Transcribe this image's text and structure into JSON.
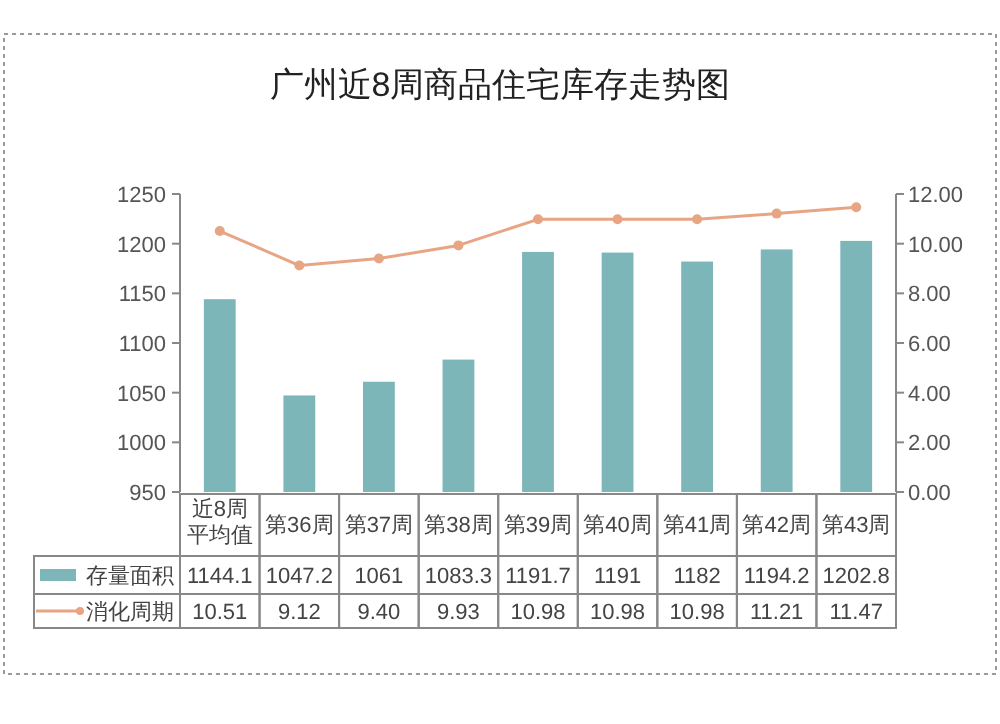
{
  "chart_data": {
    "type": "bar",
    "title": "广州近8周商品住宅库存走势图",
    "categories": [
      "近8周平均值",
      "第36周",
      "第37周",
      "第38周",
      "第39周",
      "第40周",
      "第41周",
      "第42周",
      "第43周"
    ],
    "series": [
      {
        "name": "存量面积",
        "color": "#7db6b8",
        "values": [
          1144.1,
          1047.2,
          1061,
          1083.3,
          1191.7,
          1191,
          1182,
          1194.2,
          1202.8
        ],
        "value_labels": [
          "1144.1",
          "1047.2",
          "1061",
          "1083.3",
          "1191.7",
          "1191",
          "1182",
          "1194.2",
          "1202.8"
        ]
      },
      {
        "name": "消化周期",
        "type": "line",
        "axis": "y2",
        "color": "#e8a584",
        "marker": "circle",
        "values": [
          10.51,
          9.12,
          9.4,
          9.93,
          10.98,
          10.98,
          10.98,
          11.21,
          11.47
        ],
        "value_labels": [
          "10.51",
          "9.12",
          "9.40",
          "9.93",
          "10.98",
          "10.98",
          "10.98",
          "11.21",
          "11.47"
        ]
      }
    ],
    "ylim": [
      950,
      1250
    ],
    "yticks": [
      950,
      1000,
      1050,
      1100,
      1150,
      1200,
      1250
    ],
    "y2lim": [
      0,
      12
    ],
    "y2ticks": [
      {
        "value": 0,
        "label": "0.00"
      },
      {
        "value": 2,
        "label": "2.00"
      },
      {
        "value": 4,
        "label": "4.00"
      },
      {
        "value": 6,
        "label": "6.00"
      },
      {
        "value": 8,
        "label": "8.00"
      },
      {
        "value": 10,
        "label": "10.00"
      },
      {
        "value": 12,
        "label": "12.00"
      }
    ],
    "legend": "left",
    "grid": false
  }
}
